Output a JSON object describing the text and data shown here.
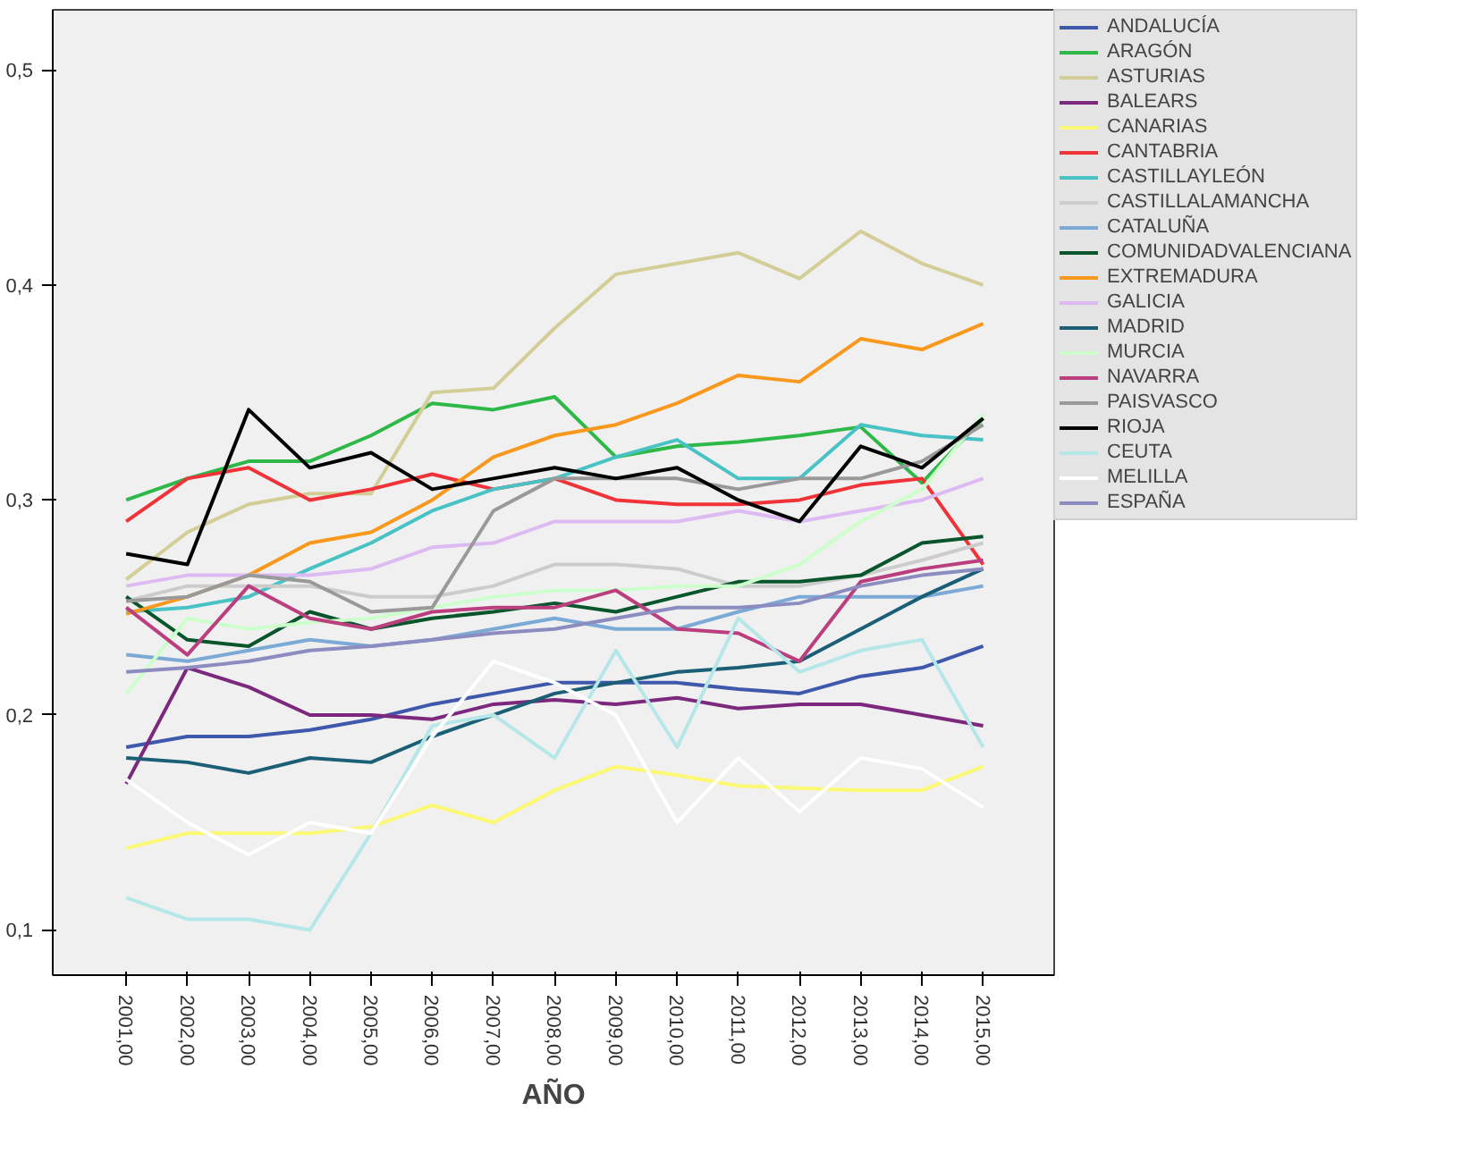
{
  "chart_data": {
    "type": "line",
    "xlabel": "AÑO",
    "x": [
      2001,
      2002,
      2003,
      2004,
      2005,
      2006,
      2007,
      2008,
      2009,
      2010,
      2011,
      2012,
      2013,
      2014,
      2015
    ],
    "xlim": [
      1999.8,
      2016.16
    ],
    "ylim": [
      0.079,
      0.528
    ],
    "xticks": [
      {
        "value": 2001,
        "label": "2001,00"
      },
      {
        "value": 2002,
        "label": "2002,00"
      },
      {
        "value": 2003,
        "label": "2003,00"
      },
      {
        "value": 2004,
        "label": "2004,00"
      },
      {
        "value": 2005,
        "label": "2005,00"
      },
      {
        "value": 2006,
        "label": "2006,00"
      },
      {
        "value": 2007,
        "label": "2007,00"
      },
      {
        "value": 2008,
        "label": "2008,00"
      },
      {
        "value": 2009,
        "label": "2009,00"
      },
      {
        "value": 2010,
        "label": "2010,00"
      },
      {
        "value": 2011,
        "label": "2011,00"
      },
      {
        "value": 2012,
        "label": "2012,00"
      },
      {
        "value": 2013,
        "label": "2013,00"
      },
      {
        "value": 2014,
        "label": "2014,00"
      },
      {
        "value": 2015,
        "label": "2015,00"
      }
    ],
    "yticks": [
      {
        "value": 0.1,
        "label": "0,1"
      },
      {
        "value": 0.2,
        "label": "0,2"
      },
      {
        "value": 0.3,
        "label": "0,3"
      },
      {
        "value": 0.4,
        "label": "0,4"
      },
      {
        "value": 0.5,
        "label": "0,5"
      }
    ],
    "grid": false,
    "legend": "right",
    "marker": "none",
    "line_style": "solid",
    "series": [
      {
        "name": "ANDALUCÍA",
        "color": "#3e58ac",
        "values": [
          0.185,
          0.19,
          0.19,
          0.193,
          0.198,
          0.205,
          0.21,
          0.215,
          0.215,
          0.215,
          0.212,
          0.21,
          0.218,
          0.222,
          0.232
        ]
      },
      {
        "name": "ARAGÓN",
        "color": "#2eb848",
        "values": [
          0.3,
          0.31,
          0.318,
          0.318,
          0.33,
          0.345,
          0.342,
          0.348,
          0.32,
          0.325,
          0.327,
          0.33,
          0.334,
          0.308,
          0.338
        ]
      },
      {
        "name": "ASTURIAS",
        "color": "#d3ce97",
        "values": [
          0.263,
          0.285,
          0.298,
          0.303,
          0.303,
          0.35,
          0.352,
          0.38,
          0.405,
          0.41,
          0.415,
          0.403,
          0.425,
          0.41,
          0.4
        ]
      },
      {
        "name": "BALEARS",
        "color": "#7c287d",
        "values": [
          0.168,
          0.222,
          0.213,
          0.2,
          0.2,
          0.198,
          0.205,
          0.207,
          0.205,
          0.208,
          0.203,
          0.205,
          0.205,
          0.2,
          0.195
        ]
      },
      {
        "name": "CANARIAS",
        "color": "#fbf873",
        "values": [
          0.138,
          0.145,
          0.145,
          0.145,
          0.148,
          0.158,
          0.15,
          0.165,
          0.176,
          0.172,
          0.167,
          0.166,
          0.165,
          0.165,
          0.176
        ]
      },
      {
        "name": "CANTABRIA",
        "color": "#ef3338",
        "values": [
          0.29,
          0.31,
          0.315,
          0.3,
          0.305,
          0.312,
          0.305,
          0.31,
          0.3,
          0.298,
          0.298,
          0.3,
          0.307,
          0.31,
          0.27
        ]
      },
      {
        "name": "CASTILLAYLEÓN",
        "color": "#48c2c5",
        "values": [
          0.248,
          0.25,
          0.255,
          0.268,
          0.28,
          0.295,
          0.305,
          0.31,
          0.32,
          0.328,
          0.31,
          0.31,
          0.335,
          0.33,
          0.328
        ]
      },
      {
        "name": "CASTILLALAMANCHA",
        "color": "#cccccc",
        "values": [
          0.253,
          0.26,
          0.26,
          0.26,
          0.255,
          0.255,
          0.26,
          0.27,
          0.27,
          0.268,
          0.26,
          0.26,
          0.265,
          0.272,
          0.28
        ]
      },
      {
        "name": "CATALUÑA",
        "color": "#7aaad5",
        "values": [
          0.228,
          0.225,
          0.23,
          0.235,
          0.232,
          0.235,
          0.24,
          0.245,
          0.24,
          0.24,
          0.248,
          0.255,
          0.255,
          0.255,
          0.26
        ]
      },
      {
        "name": "COMUNIDADVALENCIANA",
        "color": "#0a562c",
        "values": [
          0.255,
          0.235,
          0.232,
          0.248,
          0.24,
          0.245,
          0.248,
          0.252,
          0.248,
          0.255,
          0.262,
          0.262,
          0.265,
          0.28,
          0.283
        ]
      },
      {
        "name": "EXTREMADURA",
        "color": "#f8981d",
        "values": [
          0.247,
          0.255,
          0.265,
          0.28,
          0.285,
          0.3,
          0.32,
          0.33,
          0.335,
          0.345,
          0.358,
          0.355,
          0.375,
          0.37,
          0.382
        ]
      },
      {
        "name": "GALICIA",
        "color": "#ddbaf1",
        "values": [
          0.26,
          0.265,
          0.265,
          0.265,
          0.268,
          0.278,
          0.28,
          0.29,
          0.29,
          0.29,
          0.295,
          0.29,
          0.295,
          0.3,
          0.31
        ]
      },
      {
        "name": "MADRID",
        "color": "#1a5f76",
        "values": [
          0.18,
          0.178,
          0.173,
          0.18,
          0.178,
          0.19,
          0.2,
          0.21,
          0.215,
          0.22,
          0.222,
          0.225,
          0.24,
          0.255,
          0.268
        ]
      },
      {
        "name": "MURCIA",
        "color": "#ccffcc",
        "values": [
          0.21,
          0.245,
          0.24,
          0.243,
          0.245,
          0.25,
          0.255,
          0.258,
          0.258,
          0.26,
          0.26,
          0.27,
          0.29,
          0.305,
          0.34
        ]
      },
      {
        "name": "NAVARRA",
        "color": "#bb3f7f",
        "values": [
          0.25,
          0.228,
          0.26,
          0.245,
          0.24,
          0.248,
          0.25,
          0.25,
          0.258,
          0.24,
          0.238,
          0.225,
          0.262,
          0.268,
          0.272
        ]
      },
      {
        "name": "PAISVASCO",
        "color": "#999999",
        "values": [
          0.253,
          0.255,
          0.265,
          0.262,
          0.248,
          0.25,
          0.295,
          0.31,
          0.31,
          0.31,
          0.305,
          0.31,
          0.31,
          0.318,
          0.335
        ]
      },
      {
        "name": "RIOJA",
        "color": "#000000",
        "values": [
          0.275,
          0.27,
          0.342,
          0.315,
          0.322,
          0.305,
          0.31,
          0.315,
          0.31,
          0.315,
          0.3,
          0.29,
          0.325,
          0.315,
          0.338
        ]
      },
      {
        "name": "CEUTA",
        "color": "#b6e7e8",
        "values": [
          0.115,
          0.105,
          0.105,
          0.1,
          0.145,
          0.195,
          0.2,
          0.18,
          0.23,
          0.185,
          0.245,
          0.22,
          0.23,
          0.235,
          0.185
        ]
      },
      {
        "name": "MELILLA",
        "color": "#ffffff",
        "values": [
          0.17,
          0.15,
          0.135,
          0.15,
          0.145,
          0.19,
          0.225,
          0.215,
          0.2,
          0.15,
          0.18,
          0.155,
          0.18,
          0.175,
          0.157
        ]
      },
      {
        "name": "ESPAÑA",
        "color": "#8c8cc0",
        "values": [
          0.22,
          0.222,
          0.225,
          0.23,
          0.232,
          0.235,
          0.238,
          0.24,
          0.245,
          0.25,
          0.25,
          0.252,
          0.26,
          0.265,
          0.268
        ]
      }
    ]
  }
}
